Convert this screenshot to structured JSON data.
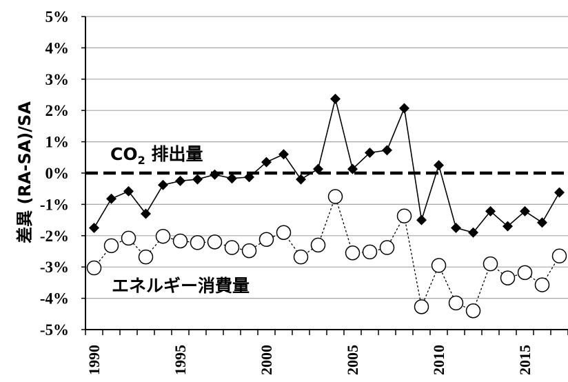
{
  "chart_data": {
    "type": "line",
    "title": "",
    "xlabel": "",
    "ylabel": "差異 (RA-SA)/SA",
    "xlim": [
      1989.5,
      2017.5
    ],
    "ylim": [
      -5,
      5
    ],
    "x_ticks": [
      1990,
      1995,
      2000,
      2005,
      2010,
      2015
    ],
    "y_ticks": [
      "5%",
      "4%",
      "3%",
      "2%",
      "1%",
      "0%",
      "-1%",
      "-2%",
      "-3%",
      "-4%",
      "-5%"
    ],
    "y_tick_values": [
      5,
      4,
      3,
      2,
      1,
      0,
      -1,
      -2,
      -3,
      -4,
      -5
    ],
    "grid": "horizontal",
    "reference_line": 0,
    "x": [
      1990,
      1991,
      1992,
      1993,
      1994,
      1995,
      1996,
      1997,
      1998,
      1999,
      2000,
      2001,
      2002,
      2003,
      2004,
      2005,
      2006,
      2007,
      2008,
      2009,
      2010,
      2011,
      2012,
      2013,
      2014,
      2015,
      2016,
      2017
    ],
    "series": [
      {
        "name": "CO",
        "name_sub": "2",
        "name_suffix": " 排出量",
        "marker": "filled-diamond",
        "line": "solid",
        "values": [
          -1.75,
          -0.82,
          -0.58,
          -1.3,
          -0.38,
          -0.25,
          -0.2,
          -0.05,
          -0.17,
          -0.13,
          0.35,
          0.6,
          -0.2,
          0.13,
          2.37,
          0.13,
          0.65,
          0.73,
          2.07,
          -1.5,
          0.25,
          -1.75,
          -1.9,
          -1.22,
          -1.7,
          -1.22,
          -1.58,
          -0.62
        ]
      },
      {
        "name": "エネルギー消費量",
        "marker": "open-circle",
        "line": "dashed",
        "values": [
          -3.03,
          -2.32,
          -2.08,
          -2.68,
          -2.02,
          -2.17,
          -2.22,
          -2.2,
          -2.38,
          -2.48,
          -2.12,
          -1.9,
          -2.68,
          -2.3,
          -0.75,
          -2.55,
          -2.52,
          -2.38,
          -1.37,
          -4.27,
          -2.95,
          -4.15,
          -4.4,
          -2.9,
          -3.35,
          -3.18,
          -3.57,
          -2.65
        ]
      }
    ]
  }
}
